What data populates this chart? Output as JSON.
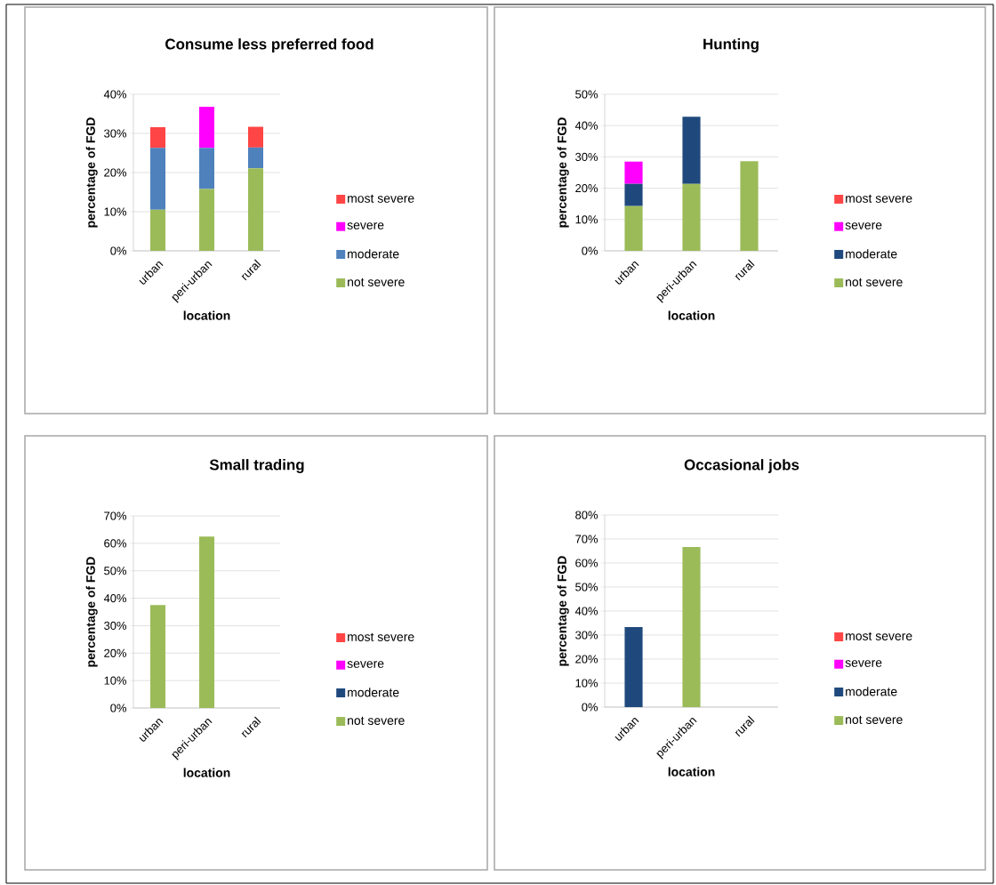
{
  "chart_data": [
    {
      "type": "bar",
      "stacked": true,
      "title": "Consume less preferred food",
      "xlabel": "location",
      "ylabel": "percentage of FGD",
      "categories": [
        "urban",
        "peri-urban",
        "rural"
      ],
      "ylim": [
        0,
        40
      ],
      "yticks": [
        {
          "value": 0,
          "label": "0%"
        },
        {
          "value": 10,
          "label": "10%"
        },
        {
          "value": 20,
          "label": "20%"
        },
        {
          "value": 30,
          "label": "30%"
        },
        {
          "value": 40,
          "label": "40%"
        }
      ],
      "grid": "y",
      "legend": "right",
      "series": [
        {
          "name": "not severe",
          "color": "#9bbb59",
          "values": [
            10.5,
            15.8,
            21.1
          ]
        },
        {
          "name": "moderate",
          "color": "#4f81bd",
          "values": [
            15.8,
            10.5,
            5.3
          ]
        },
        {
          "name": "severe",
          "color": "#ff00ff",
          "values": [
            0,
            10.5,
            0
          ]
        },
        {
          "name": "most severe",
          "color": "#ff4545",
          "values": [
            5.3,
            0,
            5.3
          ]
        }
      ]
    },
    {
      "type": "bar",
      "stacked": true,
      "title": "Hunting",
      "xlabel": "location",
      "ylabel": "percentage of FGD",
      "categories": [
        "urban",
        "peri-urban",
        "rural"
      ],
      "ylim": [
        0,
        50
      ],
      "yticks": [
        {
          "value": 0,
          "label": "0%"
        },
        {
          "value": 10,
          "label": "10%"
        },
        {
          "value": 20,
          "label": "20%"
        },
        {
          "value": 30,
          "label": "30%"
        },
        {
          "value": 40,
          "label": "40%"
        },
        {
          "value": 50,
          "label": "50%"
        }
      ],
      "grid": "y",
      "legend": "right",
      "series": [
        {
          "name": "not severe",
          "color": "#9bbb59",
          "values": [
            14.3,
            21.4,
            28.6
          ]
        },
        {
          "name": "moderate",
          "color": "#1f497d",
          "values": [
            7.1,
            21.4,
            0
          ]
        },
        {
          "name": "severe",
          "color": "#ff00ff",
          "values": [
            7.1,
            0,
            0
          ]
        },
        {
          "name": "most severe",
          "color": "#ff4545",
          "values": [
            0,
            0,
            0
          ]
        }
      ]
    },
    {
      "type": "bar",
      "stacked": true,
      "title": "Small trading",
      "xlabel": "location",
      "ylabel": "percentage of FGD",
      "categories": [
        "urban",
        "peri-urban",
        "rural"
      ],
      "ylim": [
        0,
        70
      ],
      "yticks": [
        {
          "value": 0,
          "label": "0%"
        },
        {
          "value": 10,
          "label": "10%"
        },
        {
          "value": 20,
          "label": "20%"
        },
        {
          "value": 30,
          "label": "30%"
        },
        {
          "value": 40,
          "label": "40%"
        },
        {
          "value": 50,
          "label": "50%"
        },
        {
          "value": 60,
          "label": "60%"
        },
        {
          "value": 70,
          "label": "70%"
        }
      ],
      "grid": "y",
      "legend": "right",
      "series": [
        {
          "name": "not severe",
          "color": "#9bbb59",
          "values": [
            37.5,
            62.5,
            0
          ]
        },
        {
          "name": "moderate",
          "color": "#1f497d",
          "values": [
            0,
            0,
            0
          ]
        },
        {
          "name": "severe",
          "color": "#ff00ff",
          "values": [
            0,
            0,
            0
          ]
        },
        {
          "name": "most severe",
          "color": "#ff4545",
          "values": [
            0,
            0,
            0
          ]
        }
      ]
    },
    {
      "type": "bar",
      "stacked": true,
      "title": "Occasional jobs",
      "xlabel": "location",
      "ylabel": "percentage of FGD",
      "categories": [
        "urban",
        "peri-urban",
        "rural"
      ],
      "ylim": [
        0,
        80
      ],
      "yticks": [
        {
          "value": 0,
          "label": "0%"
        },
        {
          "value": 10,
          "label": "10%"
        },
        {
          "value": 20,
          "label": "20%"
        },
        {
          "value": 30,
          "label": "30%"
        },
        {
          "value": 40,
          "label": "40%"
        },
        {
          "value": 50,
          "label": "50%"
        },
        {
          "value": 60,
          "label": "60%"
        },
        {
          "value": 70,
          "label": "70%"
        },
        {
          "value": 80,
          "label": "80%"
        }
      ],
      "grid": "y",
      "legend": "right",
      "series": [
        {
          "name": "not severe",
          "color": "#9bbb59",
          "values": [
            0,
            66.7,
            0
          ]
        },
        {
          "name": "moderate",
          "color": "#1f497d",
          "values": [
            33.3,
            0,
            0
          ]
        },
        {
          "name": "severe",
          "color": "#ff00ff",
          "values": [
            0,
            0,
            0
          ]
        },
        {
          "name": "most severe",
          "color": "#ff4545",
          "values": [
            0,
            0,
            0
          ]
        }
      ]
    }
  ]
}
